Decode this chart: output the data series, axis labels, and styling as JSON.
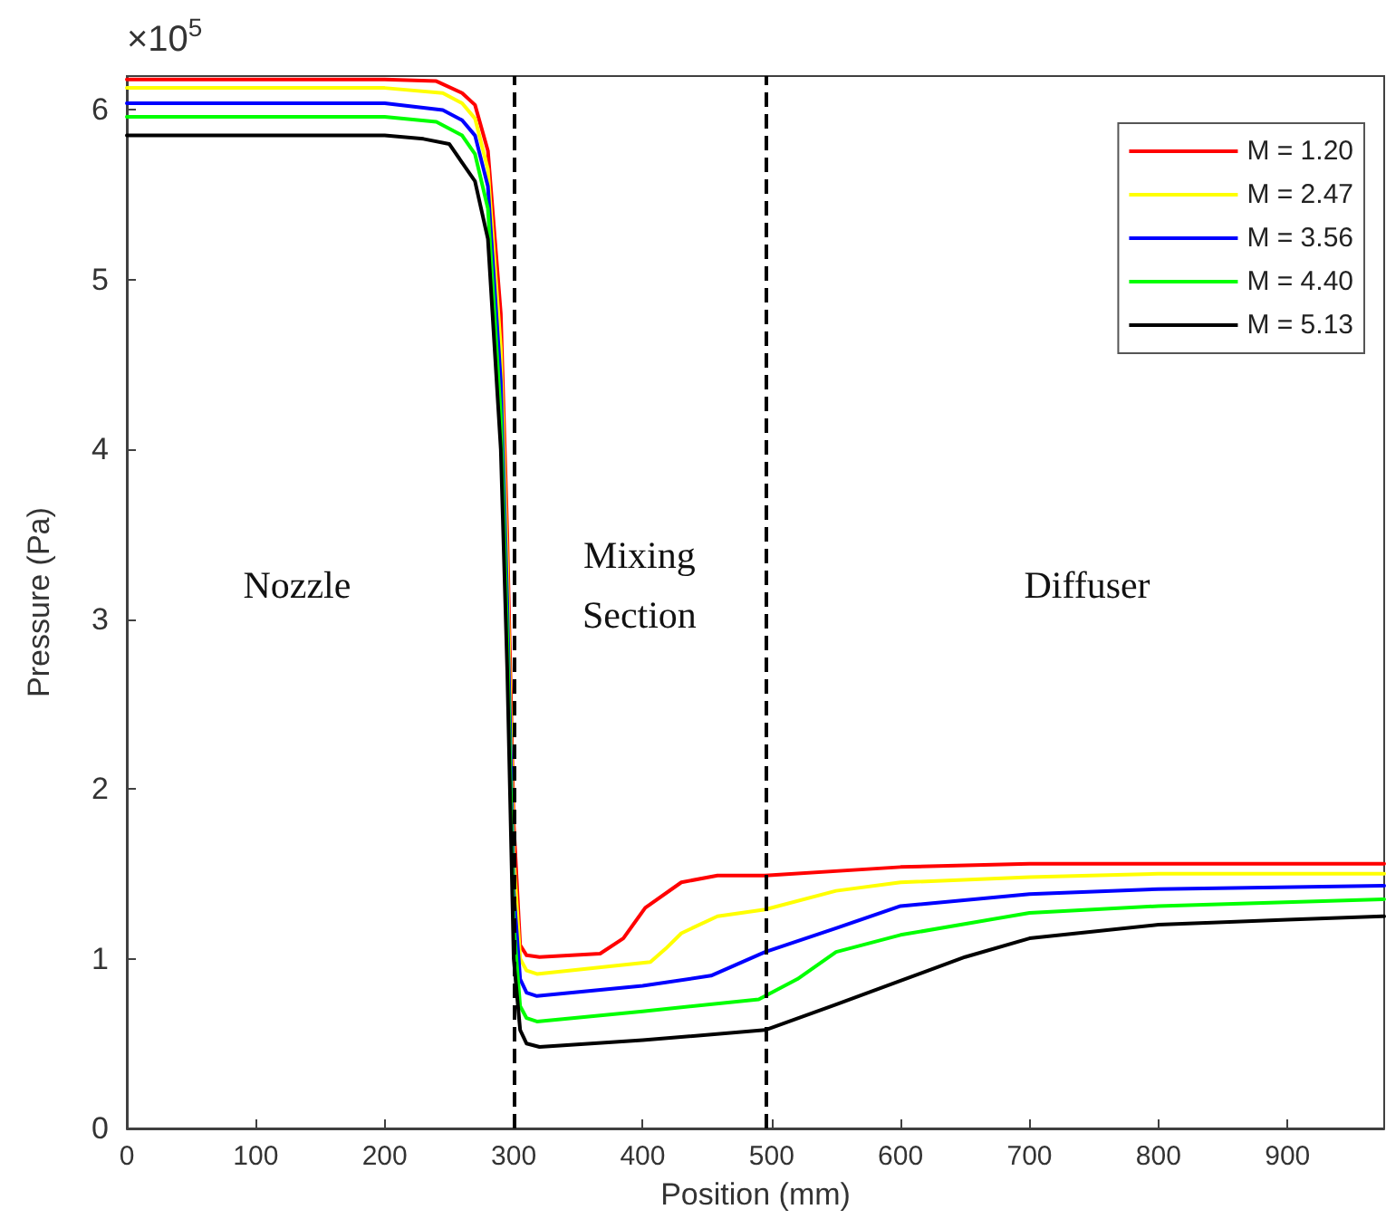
{
  "chart_data": {
    "type": "line",
    "xlabel": "Position (mm)",
    "ylabel": "Pressure (Pa)",
    "xlim": [
      0,
      975
    ],
    "xticks": [
      0,
      100,
      200,
      300,
      400,
      500,
      600,
      700,
      800,
      900
    ],
    "ylim": [
      0,
      6.2
    ],
    "yticks": [
      0,
      1,
      2,
      3,
      4,
      5,
      6
    ],
    "grid": false,
    "legend": "top right",
    "marker": "none",
    "line_style": "solid",
    "series": [
      {
        "name": "M = 1.20",
        "color": "#ff0000",
        "x": [
          0,
          200,
          240,
          260,
          270,
          280,
          290,
          295,
          300,
          305,
          310,
          320,
          367,
          385,
          402,
          430,
          458,
          495,
          600,
          700,
          800,
          975
        ],
        "values": [
          6.18,
          6.18,
          6.17,
          6.1,
          6.03,
          5.76,
          4.8,
          3.5,
          1.8,
          1.08,
          1.02,
          1.01,
          1.03,
          1.12,
          1.3,
          1.45,
          1.49,
          1.49,
          1.54,
          1.56,
          1.56,
          1.56
        ]
      },
      {
        "name": "M = 2.47",
        "color": "#ffff00",
        "x": [
          0,
          200,
          245,
          260,
          270,
          280,
          290,
          295,
          300,
          305,
          310,
          318,
          406,
          418,
          430,
          458,
          495,
          550,
          600,
          700,
          800,
          975
        ],
        "values": [
          6.13,
          6.13,
          6.1,
          6.04,
          5.95,
          5.65,
          4.6,
          3.3,
          1.6,
          1.0,
          0.93,
          0.91,
          0.98,
          1.06,
          1.15,
          1.25,
          1.29,
          1.4,
          1.45,
          1.48,
          1.5,
          1.5
        ]
      },
      {
        "name": "M = 3.56",
        "color": "#0000ff",
        "x": [
          0,
          200,
          245,
          260,
          270,
          280,
          290,
          295,
          300,
          305,
          310,
          318,
          400,
          453,
          495,
          550,
          600,
          700,
          800,
          975
        ],
        "values": [
          6.04,
          6.04,
          6.0,
          5.94,
          5.85,
          5.55,
          4.4,
          3.1,
          1.4,
          0.88,
          0.8,
          0.78,
          0.84,
          0.9,
          1.04,
          1.18,
          1.31,
          1.38,
          1.41,
          1.43
        ]
      },
      {
        "name": "M = 4.40",
        "color": "#00ff00",
        "x": [
          0,
          200,
          240,
          260,
          270,
          280,
          290,
          295,
          300,
          305,
          310,
          318,
          400,
          490,
          520,
          550,
          600,
          700,
          800,
          975
        ],
        "values": [
          5.96,
          5.96,
          5.93,
          5.85,
          5.74,
          5.42,
          4.2,
          2.9,
          1.2,
          0.72,
          0.65,
          0.63,
          0.69,
          0.76,
          0.88,
          1.04,
          1.14,
          1.27,
          1.31,
          1.35
        ]
      },
      {
        "name": "M = 5.13",
        "color": "#000000",
        "x": [
          0,
          200,
          230,
          250,
          270,
          280,
          290,
          295,
          300,
          305,
          310,
          320,
          400,
          495,
          550,
          600,
          650,
          700,
          800,
          900,
          975
        ],
        "values": [
          5.85,
          5.85,
          5.83,
          5.8,
          5.58,
          5.24,
          4.0,
          2.7,
          1.0,
          0.58,
          0.5,
          0.48,
          0.52,
          0.58,
          0.73,
          0.87,
          1.01,
          1.12,
          1.2,
          1.23,
          1.25
        ]
      }
    ],
    "ref_lines": [
      {
        "axis": "x",
        "value": 300,
        "label": null,
        "color": "#000000",
        "line_style": "dashed"
      },
      {
        "axis": "x",
        "value": 495,
        "label": null,
        "color": "#000000",
        "line_style": "dashed"
      }
    ],
    "annotations": [
      "×10$^{5}$",
      "Nozzle",
      "Mixing\nSection",
      "Diffuser"
    ]
  }
}
